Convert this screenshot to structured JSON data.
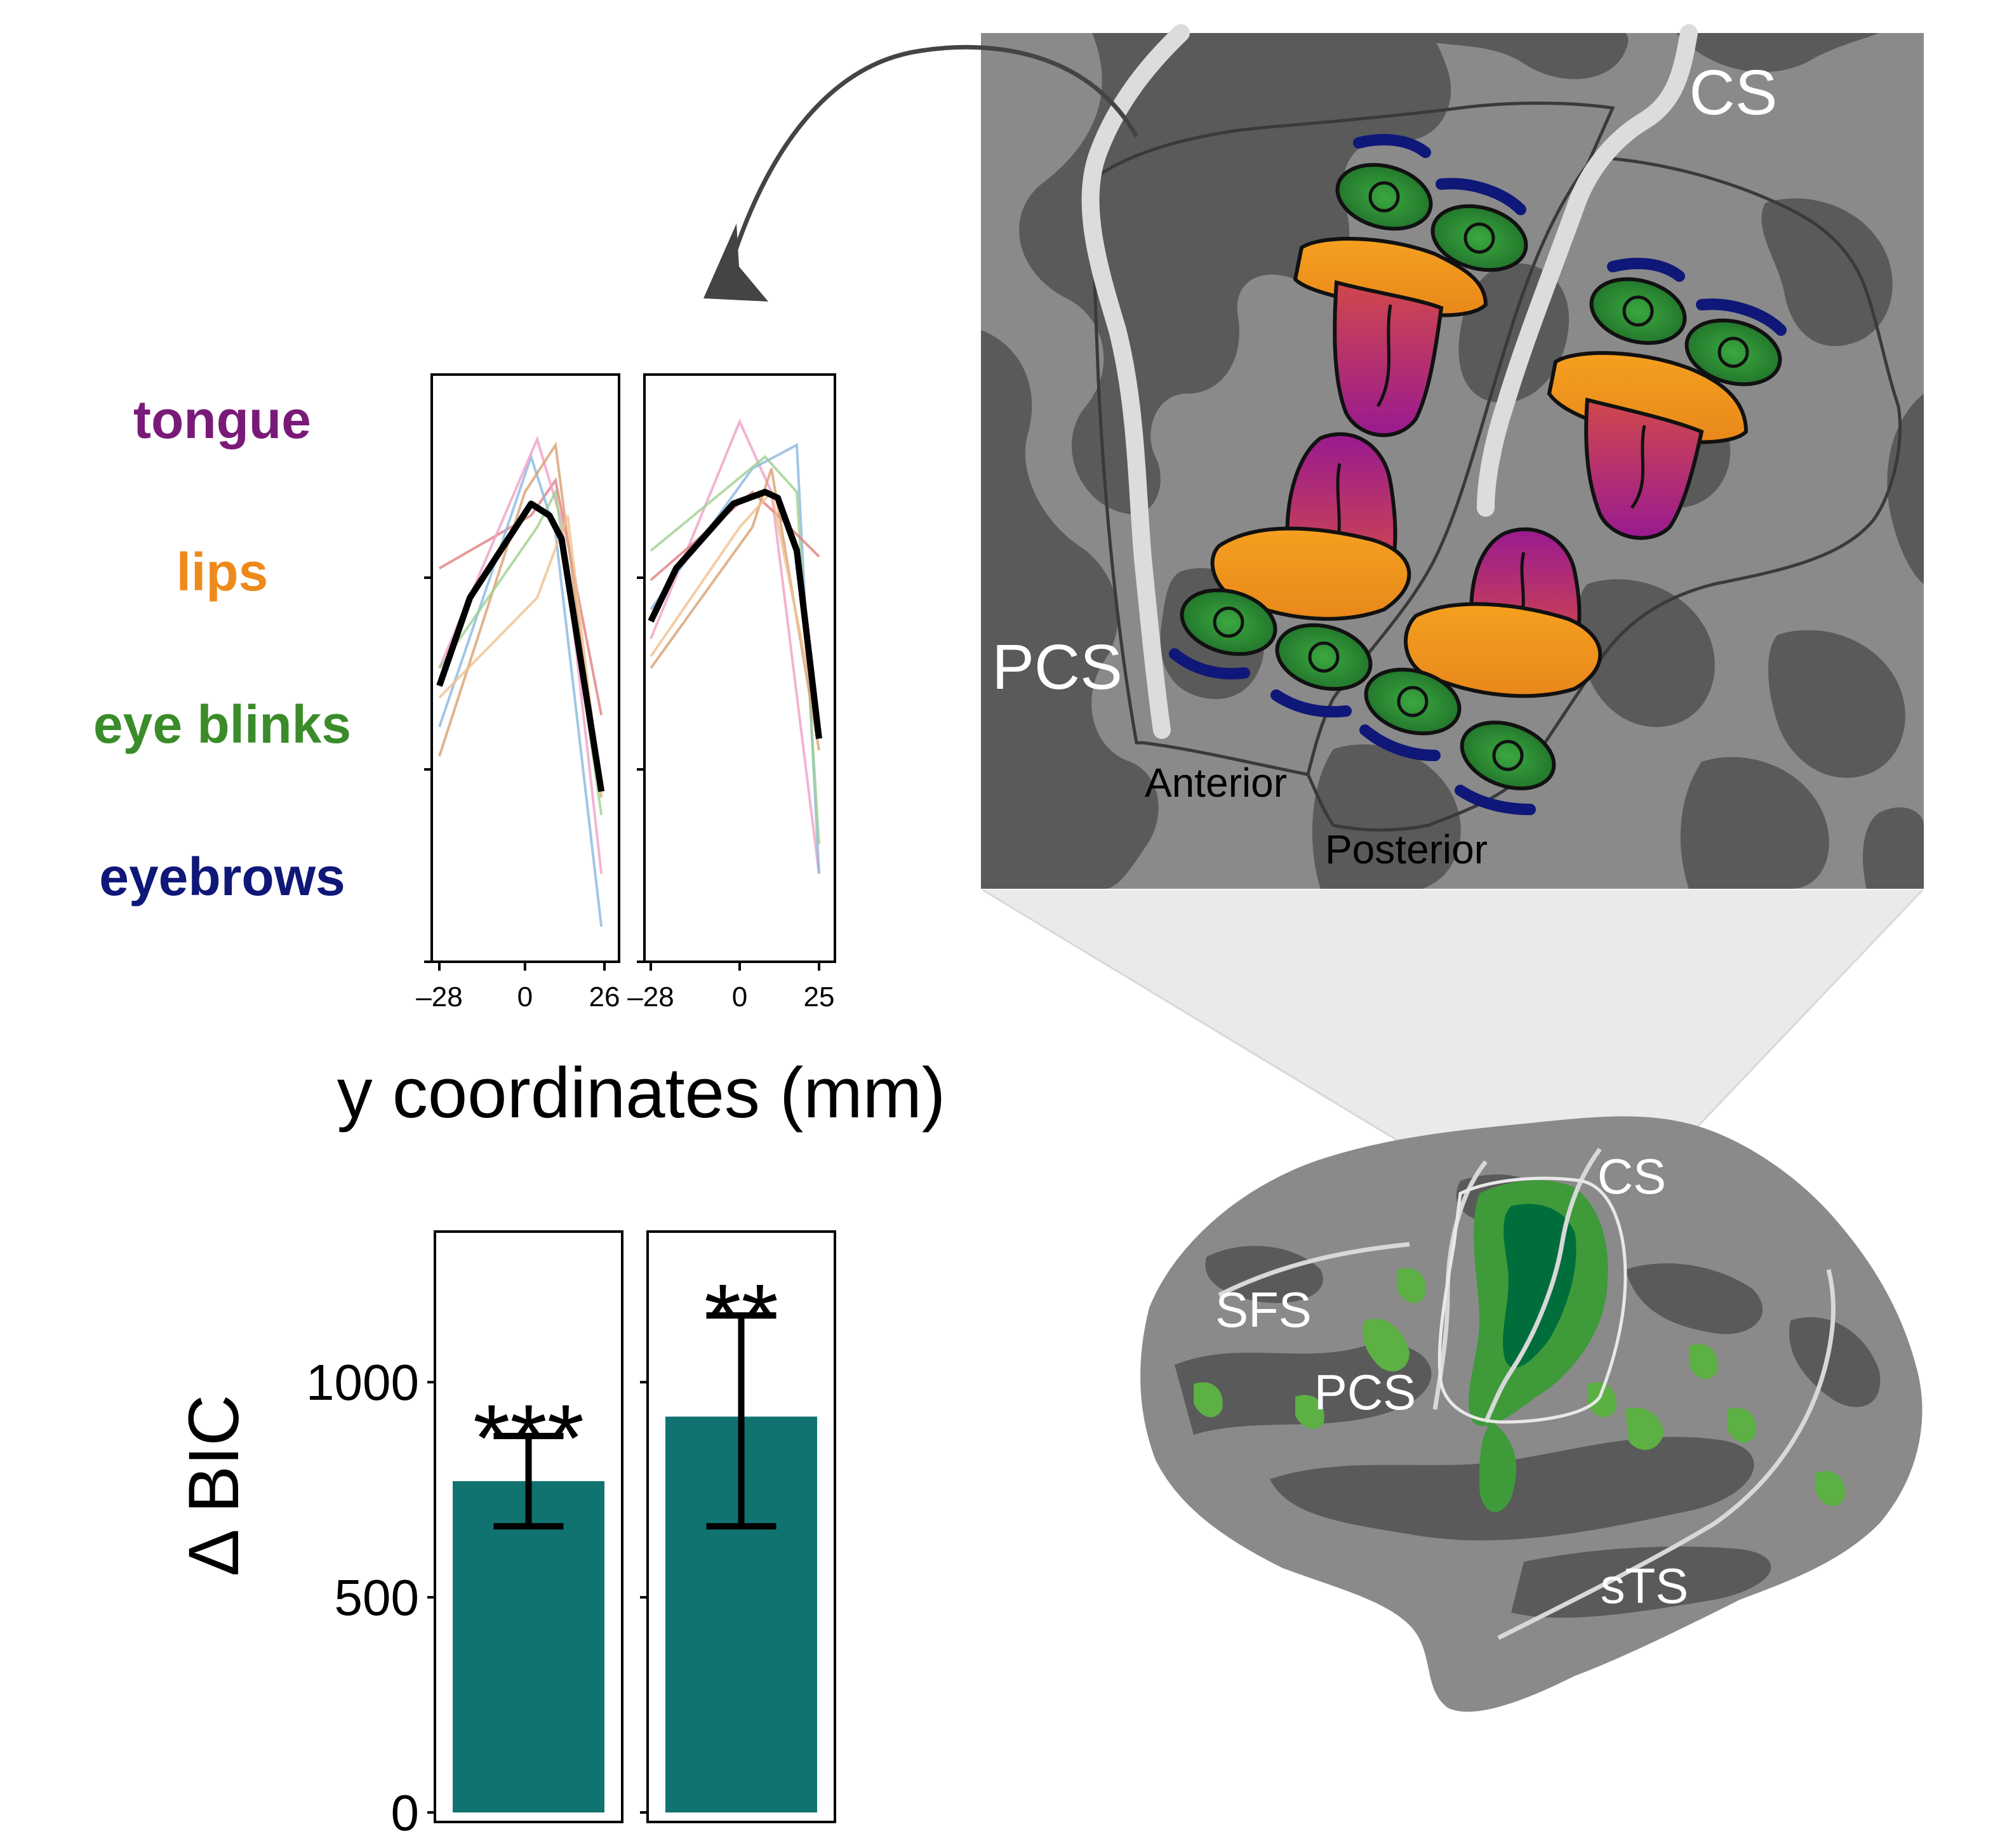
{
  "legend": {
    "items": [
      {
        "label": "tongue",
        "color": "#7a1a78"
      },
      {
        "label": "lips",
        "color": "#ee8a1c"
      },
      {
        "label": "eye blinks",
        "color": "#3a8c2a"
      },
      {
        "label": "eyebrows",
        "color": "#0f1878"
      }
    ]
  },
  "chart_data": [
    {
      "type": "line",
      "xlabel": "y coordinates (mm)",
      "panels": [
        {
          "x_ticks": [
            "–28",
            "0",
            "26"
          ],
          "xlim": [
            -28,
            26
          ],
          "ylim": [
            0,
            1
          ],
          "mean_series": {
            "x": [
              -28,
              -18,
              2,
              8,
              12,
              25
            ],
            "y": [
              0.47,
              0.62,
              0.78,
              0.76,
              0.72,
              0.29
            ]
          },
          "participant_series": [
            {
              "color": "#e08080",
              "x": [
                -28,
                2,
                10,
                25
              ],
              "y": [
                0.67,
                0.76,
                0.82,
                0.42
              ]
            },
            {
              "color": "#88b8e0",
              "x": [
                -28,
                2,
                10,
                25
              ],
              "y": [
                0.4,
                0.86,
                0.73,
                0.06
              ]
            },
            {
              "color": "#f0a0c8",
              "x": [
                -28,
                4,
                12,
                25
              ],
              "y": [
                0.5,
                0.89,
                0.75,
                0.15
              ]
            },
            {
              "color": "#d8a070",
              "x": [
                -28,
                0,
                10,
                25
              ],
              "y": [
                0.35,
                0.8,
                0.88,
                0.28
              ]
            },
            {
              "color": "#a0d090",
              "x": [
                -28,
                4,
                10,
                25
              ],
              "y": [
                0.5,
                0.74,
                0.8,
                0.25
              ]
            },
            {
              "color": "#f0c090",
              "x": [
                -28,
                4,
                14,
                25
              ],
              "y": [
                0.45,
                0.62,
                0.76,
                0.28
              ]
            }
          ]
        },
        {
          "x_ticks": [
            "–28",
            "0",
            "25"
          ],
          "xlim": [
            -28,
            25
          ],
          "ylim": [
            0,
            1
          ],
          "mean_series": {
            "x": [
              -28,
              -20,
              -2,
              8,
              12,
              18,
              25
            ],
            "y": [
              0.58,
              0.67,
              0.78,
              0.8,
              0.79,
              0.7,
              0.38
            ]
          },
          "participant_series": [
            {
              "color": "#f0a0c8",
              "x": [
                -28,
                0,
                10,
                25
              ],
              "y": [
                0.55,
                0.92,
                0.8,
                0.15
              ]
            },
            {
              "color": "#88b8e0",
              "x": [
                -28,
                4,
                18,
                25
              ],
              "y": [
                0.6,
                0.84,
                0.88,
                0.15
              ]
            },
            {
              "color": "#a0d090",
              "x": [
                -28,
                8,
                18,
                25
              ],
              "y": [
                0.7,
                0.86,
                0.8,
                0.2
              ]
            },
            {
              "color": "#e08080",
              "x": [
                -28,
                4,
                12,
                25
              ],
              "y": [
                0.65,
                0.8,
                0.76,
                0.69
              ]
            },
            {
              "color": "#d8a070",
              "x": [
                -28,
                4,
                10,
                25
              ],
              "y": [
                0.5,
                0.74,
                0.84,
                0.36
              ]
            },
            {
              "color": "#f0c090",
              "x": [
                -28,
                0,
                10,
                25
              ],
              "y": [
                0.52,
                0.74,
                0.8,
                0.4
              ]
            }
          ]
        }
      ]
    },
    {
      "type": "bar",
      "ylabel": "Δ BIC",
      "ylim": [
        0,
        1350
      ],
      "y_ticks": [
        0,
        500,
        1000
      ],
      "color": "#107370",
      "panels": [
        {
          "value": 770,
          "err_low": 665,
          "err_high": 875,
          "sig": "***"
        },
        {
          "value": 920,
          "err_low": 665,
          "err_high": 1155,
          "sig": "**"
        }
      ]
    }
  ],
  "zoom_inset": {
    "labels": {
      "cs": "CS",
      "pcs": "PCS",
      "anterior": "Anterior",
      "posterior": "Posterior"
    }
  },
  "brain": {
    "labels": {
      "cs": "CS",
      "sfs": "SFS",
      "pcs": "PCS",
      "sts": "sTS"
    }
  }
}
